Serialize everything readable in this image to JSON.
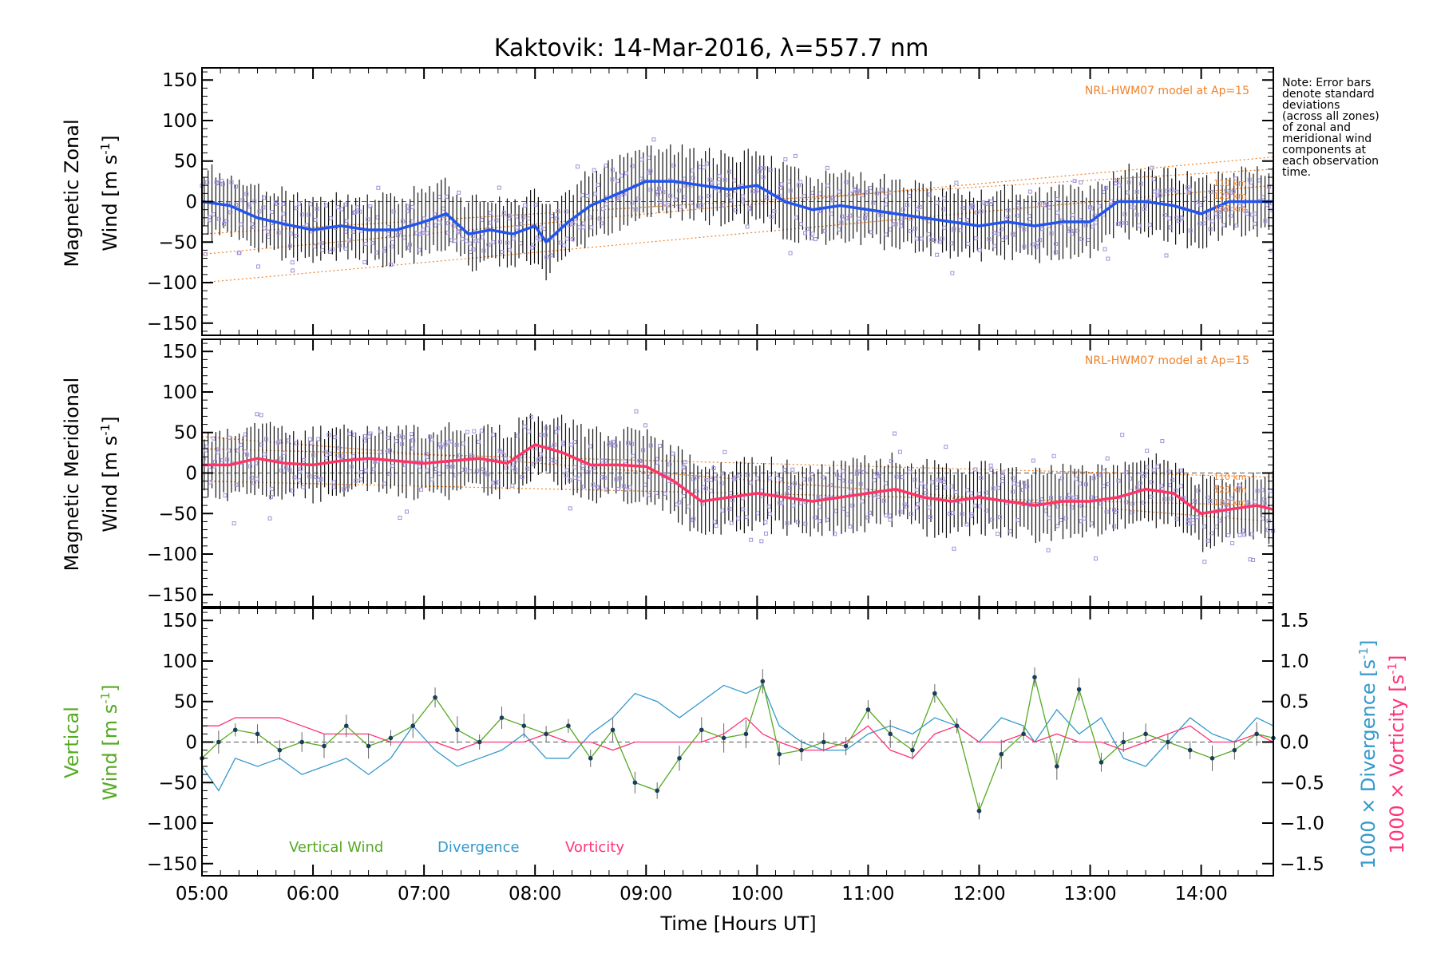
{
  "title": "Kaktovik: 14-Mar-2016, λ=557.7 nm",
  "note": [
    "Note: Error bars",
    "denote standard",
    "deviations",
    "(across all zones)",
    "of zonal and",
    "meridional wind",
    "components at",
    "each observation",
    "time."
  ],
  "colors": {
    "zonal": "#2255ee",
    "meridional": "#ff3366",
    "vertical": "#55aa22",
    "divergence": "#3399cc",
    "vorticity": "#ff3377",
    "model": "#f0822a",
    "scatter": "#9f92da",
    "errorbar": "#111111"
  },
  "x_axis": {
    "label": "Time [Hours UT]",
    "ticks": [
      "05:00",
      "06:00",
      "07:00",
      "08:00",
      "09:00",
      "10:00",
      "11:00",
      "12:00",
      "13:00",
      "14:00"
    ],
    "range_hours": [
      5.0,
      14.65
    ]
  },
  "panels": {
    "zonal": {
      "ylabel_line1": "Magnetic Zonal",
      "ylabel_line2": "Wind [m s",
      "ylabel_sup": "-1",
      "ylabel_close": "]",
      "model_label": "NRL-HWM07 model at Ap=15",
      "height_labels": [
        "110 km",
        "120 km",
        "130 km"
      ]
    },
    "meridional": {
      "ylabel_line1": "Magnetic Meridional",
      "ylabel_line2": "Wind [m s",
      "ylabel_sup": "-1",
      "ylabel_close": "]",
      "model_label": "NRL-HWM07 model at Ap=15",
      "height_labels": [
        "110 km",
        "120 km",
        "130 km"
      ]
    },
    "vertical": {
      "ylabel_line1": "Vertical",
      "ylabel_line2": "Wind [m s",
      "ylabel_sup": "-1",
      "ylabel_close": "]",
      "right_label1": "1000 × Divergence [s",
      "right_label2": "1000 × Vorticity [s",
      "right_sup": "-1",
      "right_close": "]",
      "legend": [
        "Vertical Wind",
        "Divergence",
        "Vorticity"
      ]
    }
  },
  "y_ticks_left": [
    "150",
    "100",
    "50",
    "0",
    "−50",
    "−100",
    "−150"
  ],
  "y_ticks_right": [
    "1.5",
    "1.0",
    "0.5",
    "0.0",
    "−0.5",
    "−1.0",
    "−1.5"
  ],
  "chart_data": [
    {
      "type": "line",
      "name": "zonal",
      "ylim": [
        -165,
        165
      ],
      "x": [
        5.0,
        5.25,
        5.5,
        5.75,
        6.0,
        6.25,
        6.5,
        6.75,
        7.0,
        7.2,
        7.4,
        7.6,
        7.8,
        8.0,
        8.1,
        8.3,
        8.5,
        8.75,
        9.0,
        9.25,
        9.5,
        9.75,
        10.0,
        10.25,
        10.5,
        10.75,
        11.0,
        11.25,
        11.5,
        11.75,
        12.0,
        12.25,
        12.5,
        12.75,
        13.0,
        13.25,
        13.5,
        13.75,
        14.0,
        14.25,
        14.5,
        14.65
      ],
      "mean": [
        0,
        -5,
        -20,
        -28,
        -35,
        -30,
        -35,
        -35,
        -25,
        -15,
        -40,
        -35,
        -40,
        -30,
        -50,
        -25,
        -5,
        10,
        25,
        25,
        20,
        15,
        20,
        0,
        -10,
        -5,
        -10,
        -15,
        -20,
        -25,
        -30,
        -25,
        -30,
        -25,
        -25,
        0,
        0,
        -5,
        -15,
        0,
        0,
        0
      ],
      "scatter_spread": 30,
      "errorbar": 40,
      "model_series": [
        {
          "name": "110 km",
          "values": [
            -65,
            55
          ]
        },
        {
          "name": "120 km",
          "values": [
            -100,
            20
          ]
        },
        {
          "name": "130 km",
          "values": [
            -40,
            40
          ]
        }
      ]
    },
    {
      "type": "line",
      "name": "meridional",
      "ylim": [
        -165,
        165
      ],
      "x": [
        5.0,
        5.25,
        5.5,
        5.75,
        6.0,
        6.25,
        6.5,
        6.75,
        7.0,
        7.25,
        7.5,
        7.75,
        8.0,
        8.25,
        8.5,
        8.75,
        9.0,
        9.25,
        9.5,
        9.75,
        10.0,
        10.25,
        10.5,
        10.75,
        11.0,
        11.25,
        11.5,
        11.75,
        12.0,
        12.25,
        12.5,
        12.75,
        13.0,
        13.25,
        13.5,
        13.75,
        14.0,
        14.25,
        14.5,
        14.65
      ],
      "mean": [
        10,
        10,
        18,
        12,
        10,
        15,
        18,
        15,
        12,
        15,
        18,
        12,
        35,
        25,
        10,
        10,
        8,
        -10,
        -35,
        -30,
        -25,
        -30,
        -35,
        -30,
        -25,
        -20,
        -30,
        -35,
        -30,
        -35,
        -40,
        -35,
        -35,
        -30,
        -20,
        -25,
        -50,
        -45,
        -40,
        -45
      ],
      "scatter_spread": 35,
      "errorbar": 40,
      "model_series": [
        {
          "name": "110 km",
          "values": [
            30,
            -5
          ]
        },
        {
          "name": "120 km",
          "values": [
            45,
            -60
          ]
        },
        {
          "name": "130 km",
          "values": [
            -10,
            -40
          ]
        }
      ]
    },
    {
      "type": "line",
      "name": "vertical",
      "ylim": [
        -165,
        165
      ],
      "x": [
        5.0,
        5.15,
        5.3,
        5.5,
        5.7,
        5.9,
        6.1,
        6.3,
        6.5,
        6.7,
        6.9,
        7.1,
        7.3,
        7.5,
        7.7,
        7.9,
        8.1,
        8.3,
        8.5,
        8.7,
        8.9,
        9.1,
        9.3,
        9.5,
        9.7,
        9.9,
        10.05,
        10.2,
        10.4,
        10.6,
        10.8,
        11.0,
        11.2,
        11.4,
        11.6,
        11.8,
        12.0,
        12.2,
        12.4,
        12.5,
        12.7,
        12.9,
        13.1,
        13.3,
        13.5,
        13.7,
        13.9,
        14.1,
        14.3,
        14.5,
        14.65
      ],
      "vertical_wind": [
        -20,
        0,
        15,
        10,
        -10,
        0,
        -5,
        20,
        -5,
        5,
        20,
        55,
        15,
        0,
        30,
        20,
        10,
        20,
        -20,
        15,
        -50,
        -60,
        -20,
        15,
        5,
        10,
        75,
        -15,
        -10,
        0,
        -5,
        40,
        10,
        -10,
        60,
        20,
        -85,
        -15,
        10,
        80,
        -30,
        65,
        -25,
        0,
        10,
        0,
        -10,
        -20,
        -10,
        10,
        5
      ],
      "divergence": [
        -0.3,
        -0.6,
        -0.2,
        -0.3,
        -0.2,
        -0.4,
        -0.3,
        -0.2,
        -0.4,
        -0.2,
        0.2,
        -0.1,
        -0.3,
        -0.2,
        -0.1,
        0.1,
        -0.2,
        -0.2,
        0.1,
        0.3,
        0.6,
        0.5,
        0.3,
        0.5,
        0.7,
        0.6,
        0.7,
        0.2,
        0.0,
        -0.1,
        -0.1,
        0.1,
        0.2,
        0.1,
        0.3,
        0.2,
        0.0,
        0.3,
        0.2,
        0.0,
        0.4,
        0.1,
        0.3,
        -0.2,
        -0.3,
        0.0,
        0.3,
        0.1,
        0.0,
        0.3,
        0.2
      ],
      "vorticity": [
        0.2,
        0.2,
        0.3,
        0.3,
        0.3,
        0.2,
        0.1,
        0.1,
        0.1,
        0.0,
        0.0,
        0.0,
        -0.1,
        0.0,
        0.0,
        0.0,
        0.1,
        0.0,
        0.0,
        -0.1,
        0.0,
        0.0,
        0.0,
        0.0,
        0.1,
        0.3,
        0.1,
        0.0,
        -0.1,
        -0.1,
        0.0,
        0.2,
        -0.1,
        -0.2,
        0.1,
        0.2,
        0.0,
        0.0,
        0.1,
        0.0,
        0.1,
        0.0,
        0.0,
        -0.1,
        0.0,
        0.1,
        0.2,
        0.0,
        0.0,
        0.1,
        0.0
      ]
    }
  ]
}
